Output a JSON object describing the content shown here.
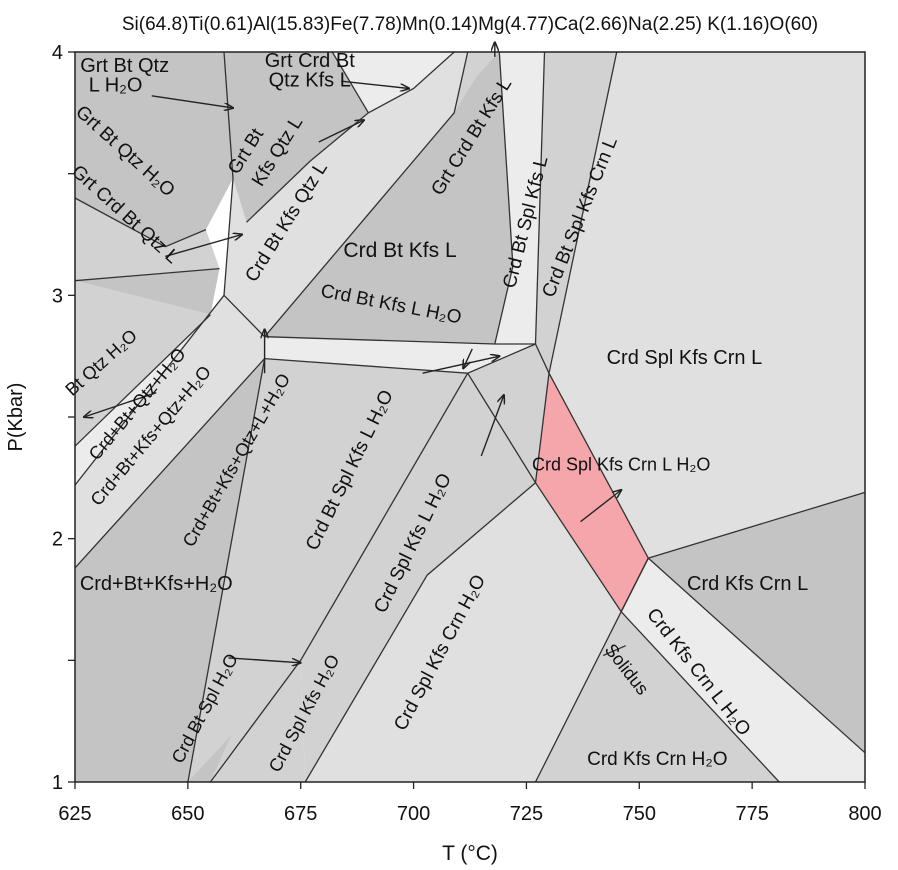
{
  "chart_data": {
    "type": "phase-diagram",
    "title": "Si(64.8)Ti(0.61)Al(15.83)Fe(7.78)Mn(0.14)Mg(4.77)Ca(2.66)Na(2.25) K(1.16)O(60)",
    "xlabel": "T (°C)",
    "ylabel": "P(Kbar)",
    "xlim": [
      625,
      800
    ],
    "ylim": [
      1,
      4
    ],
    "xticks": [
      "625",
      "650",
      "675",
      "700",
      "725",
      "750",
      "775",
      "800"
    ],
    "yticks": [
      "1",
      "2",
      "3",
      "4"
    ],
    "colors": {
      "dark": "#c4c4c4",
      "medium": "#d2d2d2",
      "light": "#e0e0e0",
      "lighter": "#ececec",
      "highlight": "#f4a6ab",
      "line": "#333333"
    },
    "fields": [
      {
        "label": "Grt Bt Qtz L H₂O",
        "shade": "dark",
        "polygon": [
          [
            625,
            4
          ],
          [
            658,
            4
          ],
          [
            660,
            3.48
          ],
          [
            654,
            3.27
          ],
          [
            645,
            3.2
          ],
          [
            625,
            3.4
          ]
        ]
      },
      {
        "label": "Grt Bt Qtz H₂O",
        "shade": "medium",
        "polygon": [
          [
            625,
            3.4
          ],
          [
            645,
            3.2
          ],
          [
            654,
            3.27
          ],
          [
            657,
            3.11
          ],
          [
            625,
            3.06
          ]
        ]
      },
      {
        "label": "Grt Crd Bt Qtz L",
        "shade": "dark",
        "polygon": [
          [
            625,
            3.06
          ],
          [
            657,
            3.11
          ],
          [
            655,
            2.92
          ],
          [
            625,
            3.06
          ]
        ]
      },
      {
        "label": "Bt Qtz H₂O",
        "shade": "medium",
        "polygon": [
          [
            625,
            3.06
          ],
          [
            655,
            2.92
          ],
          [
            625,
            2.38
          ]
        ]
      },
      {
        "label": "Crd+Bt+Qtz+H₂O",
        "shade": "lighter",
        "polygon": [
          [
            625,
            2.38
          ],
          [
            655,
            2.92
          ],
          [
            658,
            3.0
          ],
          [
            625,
            2.22
          ]
        ]
      },
      {
        "label": "Crd+Bt+Kfs+Qtz+H₂O",
        "shade": "light",
        "polygon": [
          [
            625,
            2.22
          ],
          [
            658,
            3.0
          ],
          [
            667,
            2.83
          ],
          [
            667,
            2.74
          ],
          [
            625,
            1.88
          ]
        ]
      },
      {
        "label": "Grt Bt Kfs Qtz L",
        "shade": "dark",
        "polygon": [
          [
            658,
            4
          ],
          [
            660,
            3.48
          ],
          [
            663,
            3.3
          ],
          [
            677,
            3.55
          ],
          [
            690,
            3.75
          ],
          [
            682,
            4
          ]
        ]
      },
      {
        "label": "Grt Crd Bt Qtz Kfs L",
        "shade": "lighter",
        "polygon": [
          [
            682,
            4
          ],
          [
            690,
            3.75
          ],
          [
            700,
            3.85
          ],
          [
            709,
            4
          ]
        ]
      },
      {
        "label": "Crd Bt Kfs Qtz L",
        "shade": "light",
        "polygon": [
          [
            660,
            3.48
          ],
          [
            658,
            3.0
          ],
          [
            667,
            2.83
          ],
          [
            709,
            3.75
          ],
          [
            712,
            4
          ],
          [
            709,
            4
          ],
          [
            700,
            3.85
          ],
          [
            690,
            3.75
          ],
          [
            677,
            3.55
          ],
          [
            663,
            3.3
          ]
        ]
      },
      {
        "label": "Crd Bt Kfs L",
        "shade": "dark",
        "polygon": [
          [
            712,
            4
          ],
          [
            719,
            4
          ],
          [
            722,
            3.12
          ],
          [
            718,
            2.8
          ],
          [
            667,
            2.83
          ],
          [
            709,
            3.75
          ]
        ]
      },
      {
        "label": "Grt Crd Bt Kfs L",
        "shade": "medium",
        "polygon": [
          [
            709,
            3.75
          ],
          [
            712,
            4
          ],
          [
            719,
            4
          ],
          [
            714,
            3.9
          ]
        ]
      },
      {
        "label": "Crd Bt Kfs L H₂O",
        "shade": "lighter",
        "polygon": [
          [
            667,
            2.83
          ],
          [
            718,
            2.8
          ],
          [
            727,
            2.8
          ],
          [
            712,
            2.68
          ],
          [
            667,
            2.74
          ]
        ]
      },
      {
        "label": "Crd Bt Spl Kfs L",
        "shade": "lighter",
        "polygon": [
          [
            719,
            4
          ],
          [
            729,
            4
          ],
          [
            727,
            2.8
          ],
          [
            718,
            2.8
          ],
          [
            722,
            3.12
          ]
        ]
      },
      {
        "label": "Crd Bt Spl Kfs Crn L",
        "shade": "medium",
        "polygon": [
          [
            729,
            4
          ],
          [
            745,
            4
          ],
          [
            730,
            2.68
          ],
          [
            727,
            2.8
          ]
        ]
      },
      {
        "label": "Crd Spl Kfs Crn L",
        "shade": "light",
        "polygon": [
          [
            745,
            4
          ],
          [
            800,
            4
          ],
          [
            800,
            2.19
          ],
          [
            752,
            1.92
          ],
          [
            730,
            2.68
          ]
        ]
      },
      {
        "label": "Crd Spl Kfs Crn L H₂O",
        "shade": "highlight",
        "polygon": [
          [
            730,
            2.68
          ],
          [
            752,
            1.92
          ],
          [
            746,
            1.7
          ],
          [
            727,
            2.23
          ]
        ]
      },
      {
        "label": "Crd Bt Spl Kfs L H₂O",
        "shade": "medium",
        "polygon": [
          [
            667,
            2.74
          ],
          [
            712,
            2.68
          ],
          [
            675,
            1.5
          ],
          [
            655,
            1.0
          ],
          [
            650,
            1.0
          ]
        ]
      },
      {
        "label": "Crd Spl Kfs L H₂O",
        "shade": "medium",
        "polygon": [
          [
            712,
            2.68
          ],
          [
            727,
            2.8
          ],
          [
            730,
            2.68
          ],
          [
            727,
            2.23
          ],
          [
            703,
            1.85
          ],
          [
            676,
            1.0
          ],
          [
            675,
            1.5
          ]
        ]
      },
      {
        "label": "Crd+Bt+Kfs+H₂O",
        "shade": "dark",
        "polygon": [
          [
            625,
            1.88
          ],
          [
            667,
            2.74
          ],
          [
            650,
            1.0
          ],
          [
            625,
            1.0
          ]
        ]
      },
      {
        "label": "Crd Bt Spl H₂O",
        "shade": "dark",
        "polygon": [
          [
            650,
            1.0
          ],
          [
            655,
            1.0
          ],
          [
            667,
            1.5
          ],
          [
            675,
            1.5
          ]
        ]
      },
      {
        "label": "Crd Spl Kfs H₂O",
        "shade": "medium",
        "polygon": [
          [
            655,
            1.0
          ],
          [
            676,
            1.0
          ],
          [
            675,
            1.5
          ],
          [
            667,
            1.5
          ]
        ]
      },
      {
        "label": "Crd Spl Kfs Crn H₂O",
        "shade": "light",
        "polygon": [
          [
            676,
            1.0
          ],
          [
            727,
            1.0
          ],
          [
            746,
            1.7
          ],
          [
            727,
            2.23
          ],
          [
            703,
            1.85
          ]
        ]
      },
      {
        "label": "Crd Kfs Crn L H₂O",
        "shade": "lighter",
        "polygon": [
          [
            746,
            1.7
          ],
          [
            752,
            1.92
          ],
          [
            800,
            1.12
          ],
          [
            800,
            1.0
          ],
          [
            781,
            1.0
          ]
        ]
      },
      {
        "label": "Crd Kfs Crn L",
        "shade": "dark",
        "polygon": [
          [
            752,
            1.92
          ],
          [
            800,
            2.19
          ],
          [
            800,
            1.12
          ]
        ]
      },
      {
        "label": "Crd Kfs Crn H₂O",
        "shade": "medium",
        "polygon": [
          [
            746,
            1.7
          ],
          [
            781,
            1.0
          ],
          [
            727,
            1.0
          ]
        ]
      }
    ],
    "boundaries": [
      [
        [
          658,
          4
        ],
        [
          660,
          3.48
        ],
        [
          658,
          3.0
        ]
      ],
      [
        [
          625,
          3.06
        ],
        [
          657,
          3.11
        ]
      ],
      [
        [
          625,
          3.4
        ],
        [
          645,
          3.2
        ],
        [
          654,
          3.27
        ]
      ],
      [
        [
          625,
          2.38
        ],
        [
          655,
          2.92
        ]
      ],
      [
        [
          625,
          2.22
        ],
        [
          658,
          3.0
        ]
      ],
      [
        [
          625,
          1.88
        ],
        [
          667,
          2.74
        ]
      ],
      [
        [
          658,
          3.0
        ],
        [
          667,
          2.83
        ],
        [
          718,
          2.8
        ],
        [
          727,
          2.8
        ]
      ],
      [
        [
          667,
          2.74
        ],
        [
          712,
          2.68
        ],
        [
          727,
          2.8
        ]
      ],
      [
        [
          667,
          2.83
        ],
        [
          709,
          3.75
        ],
        [
          712,
          4
        ]
      ],
      [
        [
          663,
          3.3
        ],
        [
          677,
          3.55
        ],
        [
          690,
          3.75
        ],
        [
          700,
          3.85
        ],
        [
          709,
          4
        ]
      ],
      [
        [
          682,
          4
        ],
        [
          690,
          3.75
        ]
      ],
      [
        [
          719,
          4
        ],
        [
          722,
          3.12
        ],
        [
          718,
          2.8
        ]
      ],
      [
        [
          729,
          4
        ],
        [
          727,
          2.8
        ]
      ],
      [
        [
          745,
          4
        ],
        [
          730,
          2.68
        ],
        [
          727,
          2.8
        ]
      ],
      [
        [
          730,
          2.68
        ],
        [
          727,
          2.23
        ],
        [
          712,
          2.68
        ]
      ],
      [
        [
          730,
          2.68
        ],
        [
          752,
          1.92
        ],
        [
          746,
          1.7
        ],
        [
          727,
          2.23
        ]
      ],
      [
        [
          752,
          1.92
        ],
        [
          800,
          2.19
        ]
      ],
      [
        [
          746,
          1.7
        ],
        [
          781,
          1.0
        ]
      ],
      [
        [
          746,
          1.7
        ],
        [
          752,
          1.92
        ]
      ],
      [
        [
          752,
          1.92
        ],
        [
          800,
          1.12
        ]
      ],
      [
        [
          746,
          1.7
        ],
        [
          727,
          1.0
        ]
      ],
      [
        [
          727,
          2.23
        ],
        [
          703,
          1.85
        ],
        [
          676,
          1.0
        ]
      ],
      [
        [
          712,
          2.68
        ],
        [
          675,
          1.5
        ],
        [
          655,
          1.0
        ]
      ],
      [
        [
          667,
          2.74
        ],
        [
          650,
          1.0
        ]
      ]
    ],
    "labels": [
      {
        "text": "Grt Bt Qtz",
        "x": 636,
        "y": 3.94,
        "rot": 0,
        "size": 20
      },
      {
        "text": "L H₂O",
        "x": 634,
        "y": 3.86,
        "rot": 0,
        "size": 20
      },
      {
        "text": "Grt Crd Bt",
        "x": 677,
        "y": 3.96,
        "rot": 0,
        "size": 20
      },
      {
        "text": "Qtz Kfs L",
        "x": 677,
        "y": 3.88,
        "rot": 0,
        "size": 20
      },
      {
        "text": "Grt Bt Qtz H₂O",
        "x": 636,
        "y": 3.59,
        "rot": 42,
        "size": 19
      },
      {
        "text": "Grt Crd Bt Qtz L",
        "x": 636,
        "y": 3.33,
        "rot": 42,
        "size": 19
      },
      {
        "text": "Grt Bt",
        "x": 663,
        "y": 3.59,
        "rot": -58,
        "size": 19
      },
      {
        "text": "Kfs Qtz L",
        "x": 670,
        "y": 3.59,
        "rot": -58,
        "size": 19
      },
      {
        "text": "Crd Bt Kfs Qtz L",
        "x": 672,
        "y": 3.3,
        "rot": -58,
        "size": 19
      },
      {
        "text": "Crd Bt Kfs L",
        "x": 697,
        "y": 3.18,
        "rot": 0,
        "size": 21
      },
      {
        "text": "Grt Crd Bt Kfs L",
        "x": 713,
        "y": 3.65,
        "rot": -58,
        "size": 19
      },
      {
        "text": "Crd Bt Spl Kfs L",
        "x": 725,
        "y": 3.3,
        "rot": -76,
        "size": 19
      },
      {
        "text": "Crd Bt Spl Kfs Crn L",
        "x": 737,
        "y": 3.32,
        "rot": -68,
        "size": 19
      },
      {
        "text": "Crd Bt Kfs L H₂O",
        "x": 695,
        "y": 2.96,
        "rot": 11,
        "size": 19
      },
      {
        "text": "Crd Spl Kfs Crn L",
        "x": 760,
        "y": 2.74,
        "rot": 0,
        "size": 20
      },
      {
        "text": "Crd Spl Kfs Crn L H₂O",
        "x": 746,
        "y": 2.3,
        "rot": 0,
        "size": 18
      },
      {
        "text": "Bt Qtz H₂O",
        "x": 631,
        "y": 2.72,
        "rot": -42,
        "size": 18
      },
      {
        "text": "Crd+Bt+Qtz+H₂O",
        "x": 639,
        "y": 2.55,
        "rot": -50,
        "size": 18
      },
      {
        "text": "Crd+Bt+Kfs+Qtz+H₂O",
        "x": 642,
        "y": 2.42,
        "rot": -50,
        "size": 18
      },
      {
        "text": "Crd+Bt+Kfs+Qtz+L+H₂O",
        "x": 661,
        "y": 2.32,
        "rot": -60,
        "size": 18
      },
      {
        "text": "Crd Bt Spl Kfs L H₂O",
        "x": 686,
        "y": 2.28,
        "rot": -64,
        "size": 19
      },
      {
        "text": "Crd Spl Kfs L H₂O",
        "x": 700,
        "y": 1.98,
        "rot": -64,
        "size": 19
      },
      {
        "text": "Crd Spl Kfs Crn H₂O",
        "x": 706,
        "y": 1.53,
        "rot": -62,
        "size": 19
      },
      {
        "text": "Crd+Bt+Kfs+H₂O",
        "x": 643,
        "y": 1.81,
        "rot": 0,
        "size": 20
      },
      {
        "text": "Crd Bt Spl H₂O",
        "x": 654,
        "y": 1.3,
        "rot": -62,
        "size": 18
      },
      {
        "text": "Crd Spl Kfs H₂O",
        "x": 676,
        "y": 1.28,
        "rot": -62,
        "size": 18
      },
      {
        "text": "Crd  Kfs Crn L",
        "x": 774,
        "y": 1.81,
        "rot": 0,
        "size": 20
      },
      {
        "text": "Crd  Kfs Crn L H₂O",
        "x": 763,
        "y": 1.45,
        "rot": 52,
        "size": 19
      },
      {
        "text": "Solidus",
        "x": 747,
        "y": 1.46,
        "rot": 52,
        "size": 18
      },
      {
        "text": "Crd Kfs Crn H₂O",
        "x": 754,
        "y": 1.09,
        "rot": 0,
        "size": 19
      }
    ],
    "arrows": [
      [
        [
          642,
          3.82
        ],
        [
          660,
          3.77
        ]
      ],
      [
        [
          684,
          3.88
        ],
        [
          699,
          3.85
        ]
      ],
      [
        [
          679,
          3.63
        ],
        [
          689,
          3.72
        ]
      ],
      [
        [
          718,
          3.98
        ],
        [
          718,
          4.04
        ]
      ],
      [
        [
          645,
          3.16
        ],
        [
          662,
          3.25
        ]
      ],
      [
        [
          667,
          2.68
        ],
        [
          667,
          2.86
        ]
      ],
      [
        [
          643,
          2.6
        ],
        [
          627,
          2.5
        ]
      ],
      [
        [
          713,
          2.78
        ],
        [
          711,
          2.7
        ]
      ],
      [
        [
          702,
          2.68
        ],
        [
          719,
          2.75
        ]
      ],
      [
        [
          715,
          2.34
        ],
        [
          720,
          2.59
        ]
      ],
      [
        [
          737,
          2.07
        ],
        [
          746,
          2.2
        ]
      ],
      [
        [
          659,
          1.51
        ],
        [
          675,
          1.49
        ]
      ]
    ],
    "solidus_tick": [
      [
        742,
        1.52
      ],
      [
        747,
        1.56
      ]
    ]
  }
}
